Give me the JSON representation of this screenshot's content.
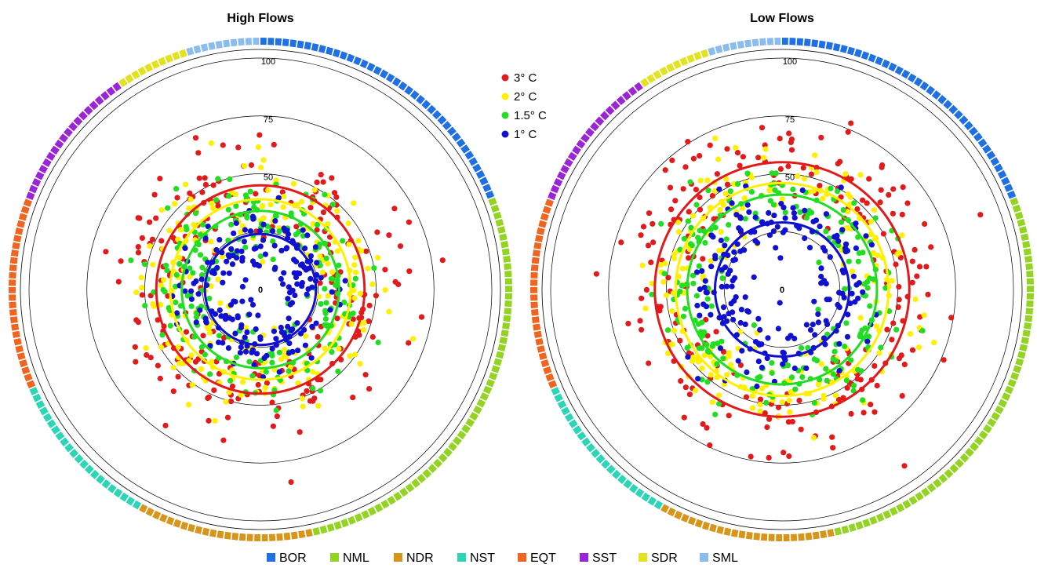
{
  "chart_data": {
    "type": "scatter",
    "coordinate_system": "polar",
    "panels": [
      {
        "title": "High Flows",
        "radial_ticks": [
          0,
          25,
          50,
          75,
          100
        ],
        "radial_tick_labels": [
          "0",
          "",
          "50",
          "75",
          "100"
        ],
        "radial_range": [
          0,
          100
        ],
        "mean_rings": [
          {
            "series": "3° C",
            "radius": 45
          },
          {
            "series": "2° C",
            "radius": 39
          },
          {
            "series": "1.5° C",
            "radius": 34
          },
          {
            "series": "1° C",
            "radius": 24
          }
        ],
        "point_seed": 7
      },
      {
        "title": "Low Flows",
        "radial_ticks": [
          0,
          25,
          50,
          75,
          100
        ],
        "radial_tick_labels": [
          "0",
          "",
          "50",
          "75",
          "100"
        ],
        "radial_range": [
          0,
          100
        ],
        "mean_rings": [
          {
            "series": "3° C",
            "radius": 55
          },
          {
            "series": "2° C",
            "radius": 46
          },
          {
            "series": "1.5° C",
            "radius": 41
          },
          {
            "series": "1° C",
            "radius": 29
          }
        ],
        "point_seed": 19
      }
    ],
    "series": [
      {
        "name": "3° C",
        "color": "#e31a1c",
        "mean_sd": 11,
        "count": 230
      },
      {
        "name": "2° C",
        "color": "#ffef00",
        "mean_sd": 9,
        "count": 220
      },
      {
        "name": "1.5° C",
        "color": "#22dd22",
        "mean_sd": 8,
        "count": 210
      },
      {
        "name": "1° C",
        "color": "#1010d0",
        "mean_sd": 7,
        "count": 200
      }
    ],
    "regions": [
      {
        "name": "BOR",
        "color": "#1f6fe5",
        "count": 40
      },
      {
        "name": "NML",
        "color": "#93d423",
        "count": 58
      },
      {
        "name": "NDR",
        "color": "#d8951b",
        "count": 24
      },
      {
        "name": "NST",
        "color": "#2ad6b5",
        "count": 22
      },
      {
        "name": "EQT",
        "color": "#f06420",
        "count": 26
      },
      {
        "name": "SST",
        "color": "#9b24d6",
        "count": 20
      },
      {
        "name": "SDR",
        "color": "#e2e21e",
        "count": 10
      },
      {
        "name": "SML",
        "color": "#8bbcee",
        "count": 10
      }
    ],
    "legend_position": "center-top",
    "grid": true
  }
}
